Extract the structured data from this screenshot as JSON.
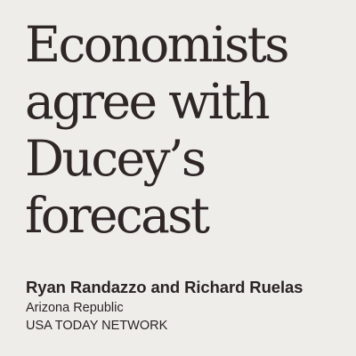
{
  "headline": {
    "lines": [
      "Economists",
      "agree with",
      "Ducey’s",
      "forecast"
    ]
  },
  "byline": {
    "authors": "Ryan Randazzo and Richard Ruelas",
    "publication": "Arizona Republic",
    "network": "USA TODAY NETWORK"
  },
  "colors": {
    "background": "#eeedea",
    "headline_text": "#2f2626",
    "byline_text": "#2b2424"
  }
}
